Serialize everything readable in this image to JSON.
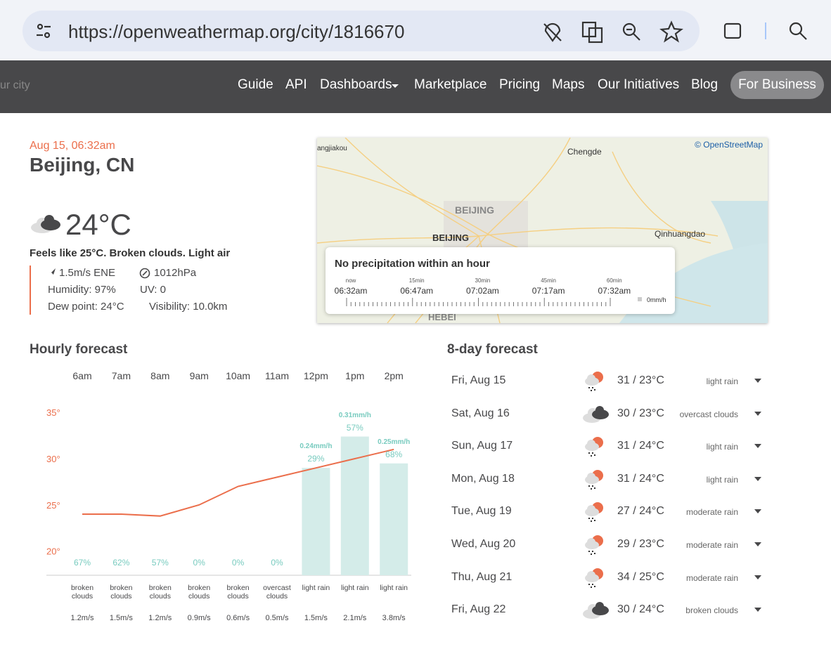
{
  "browser": {
    "url": "https://openweathermap.org/city/1816670"
  },
  "nav": {
    "search": "ur city",
    "links": [
      "Guide",
      "API",
      "Dashboards",
      "Marketplace",
      "Pricing",
      "Maps",
      "Our Initiatives",
      "Blog"
    ],
    "business": "For Business"
  },
  "current": {
    "datetime": "Aug 15, 06:32am",
    "city": "Beijing, CN",
    "temp": "24°C",
    "summary": "Feels like 25°C. Broken clouds. Light air",
    "wind": "1.5m/s ENE",
    "pressure": "1012hPa",
    "humidity": "Humidity: 97%",
    "uv": "UV: 0",
    "dew_point": "Dew point: 24°C",
    "visibility": "Visibility: 10.0km"
  },
  "map": {
    "attribution": "© OpenStreetMap",
    "places": [
      "angjiakou",
      "Chengde",
      "BEIJING",
      "BEIJING",
      "Qinhuangdao",
      "HEBEI"
    ]
  },
  "precipitation": {
    "title": "No precipitation within an hour",
    "ticks": [
      {
        "label": "now",
        "time": "06:32am"
      },
      {
        "label": "15min",
        "time": "06:47am"
      },
      {
        "label": "30min",
        "time": "07:02am"
      },
      {
        "label": "45min",
        "time": "07:17am"
      },
      {
        "label": "60min",
        "time": "07:32am"
      }
    ],
    "legend": "0mm/h"
  },
  "hourly": {
    "title": "Hourly forecast",
    "ylim": [
      17.4,
      36.3
    ],
    "yticks": [
      {
        "value": 35,
        "label": "35°"
      },
      {
        "value": 30,
        "label": "30°"
      },
      {
        "value": 25,
        "label": "25°"
      },
      {
        "value": 20,
        "label": "20°"
      }
    ],
    "hours": [
      {
        "hour": "6am",
        "temp": 24,
        "pop": "67%",
        "desc": "broken clouds",
        "wind": "1.2m/s"
      },
      {
        "hour": "7am",
        "temp": 24,
        "pop": "62%",
        "desc": "broken clouds",
        "wind": "1.5m/s"
      },
      {
        "hour": "8am",
        "temp": 23.8,
        "pop": "57%",
        "desc": "broken clouds",
        "wind": "1.2m/s"
      },
      {
        "hour": "9am",
        "temp": 25,
        "pop": "0%",
        "desc": "broken clouds",
        "wind": "0.9m/s"
      },
      {
        "hour": "10am",
        "temp": 27,
        "pop": "0%",
        "desc": "broken clouds",
        "wind": "0.6m/s"
      },
      {
        "hour": "11am",
        "temp": 28,
        "pop": "0%",
        "desc": "overcast clouds",
        "wind": "0.5m/s"
      },
      {
        "hour": "12pm",
        "temp": 29,
        "pop": "29%",
        "rain": 0.24,
        "rain_label": "0.24mm/h",
        "desc": "light rain",
        "wind": "1.5m/s"
      },
      {
        "hour": "1pm",
        "temp": 30,
        "pop": "57%",
        "rain": 0.31,
        "rain_label": "0.31mm/h",
        "desc": "light rain",
        "wind": "2.1m/s"
      },
      {
        "hour": "2pm",
        "temp": 31,
        "pop": "68%",
        "rain": 0.25,
        "rain_label": "0.25mm/h",
        "desc": "light rain",
        "wind": "3.8m/s"
      }
    ]
  },
  "daily": {
    "title": "8-day forecast",
    "days": [
      {
        "day": "Fri, Aug 15",
        "temp": "31 / 23°C",
        "desc": "light rain",
        "icon": "rain"
      },
      {
        "day": "Sat, Aug 16",
        "temp": "30 / 23°C",
        "desc": "overcast clouds",
        "icon": "clouds"
      },
      {
        "day": "Sun, Aug 17",
        "temp": "31 / 24°C",
        "desc": "light rain",
        "icon": "rain"
      },
      {
        "day": "Mon, Aug 18",
        "temp": "31 / 24°C",
        "desc": "light rain",
        "icon": "rain"
      },
      {
        "day": "Tue, Aug 19",
        "temp": "27 / 24°C",
        "desc": "moderate rain",
        "icon": "rain"
      },
      {
        "day": "Wed, Aug 20",
        "temp": "29 / 23°C",
        "desc": "moderate rain",
        "icon": "rain"
      },
      {
        "day": "Thu, Aug 21",
        "temp": "34 / 25°C",
        "desc": "moderate rain",
        "icon": "rain"
      },
      {
        "day": "Fri, Aug 22",
        "temp": "30 / 24°C",
        "desc": "broken clouds",
        "icon": "clouds"
      }
    ]
  }
}
